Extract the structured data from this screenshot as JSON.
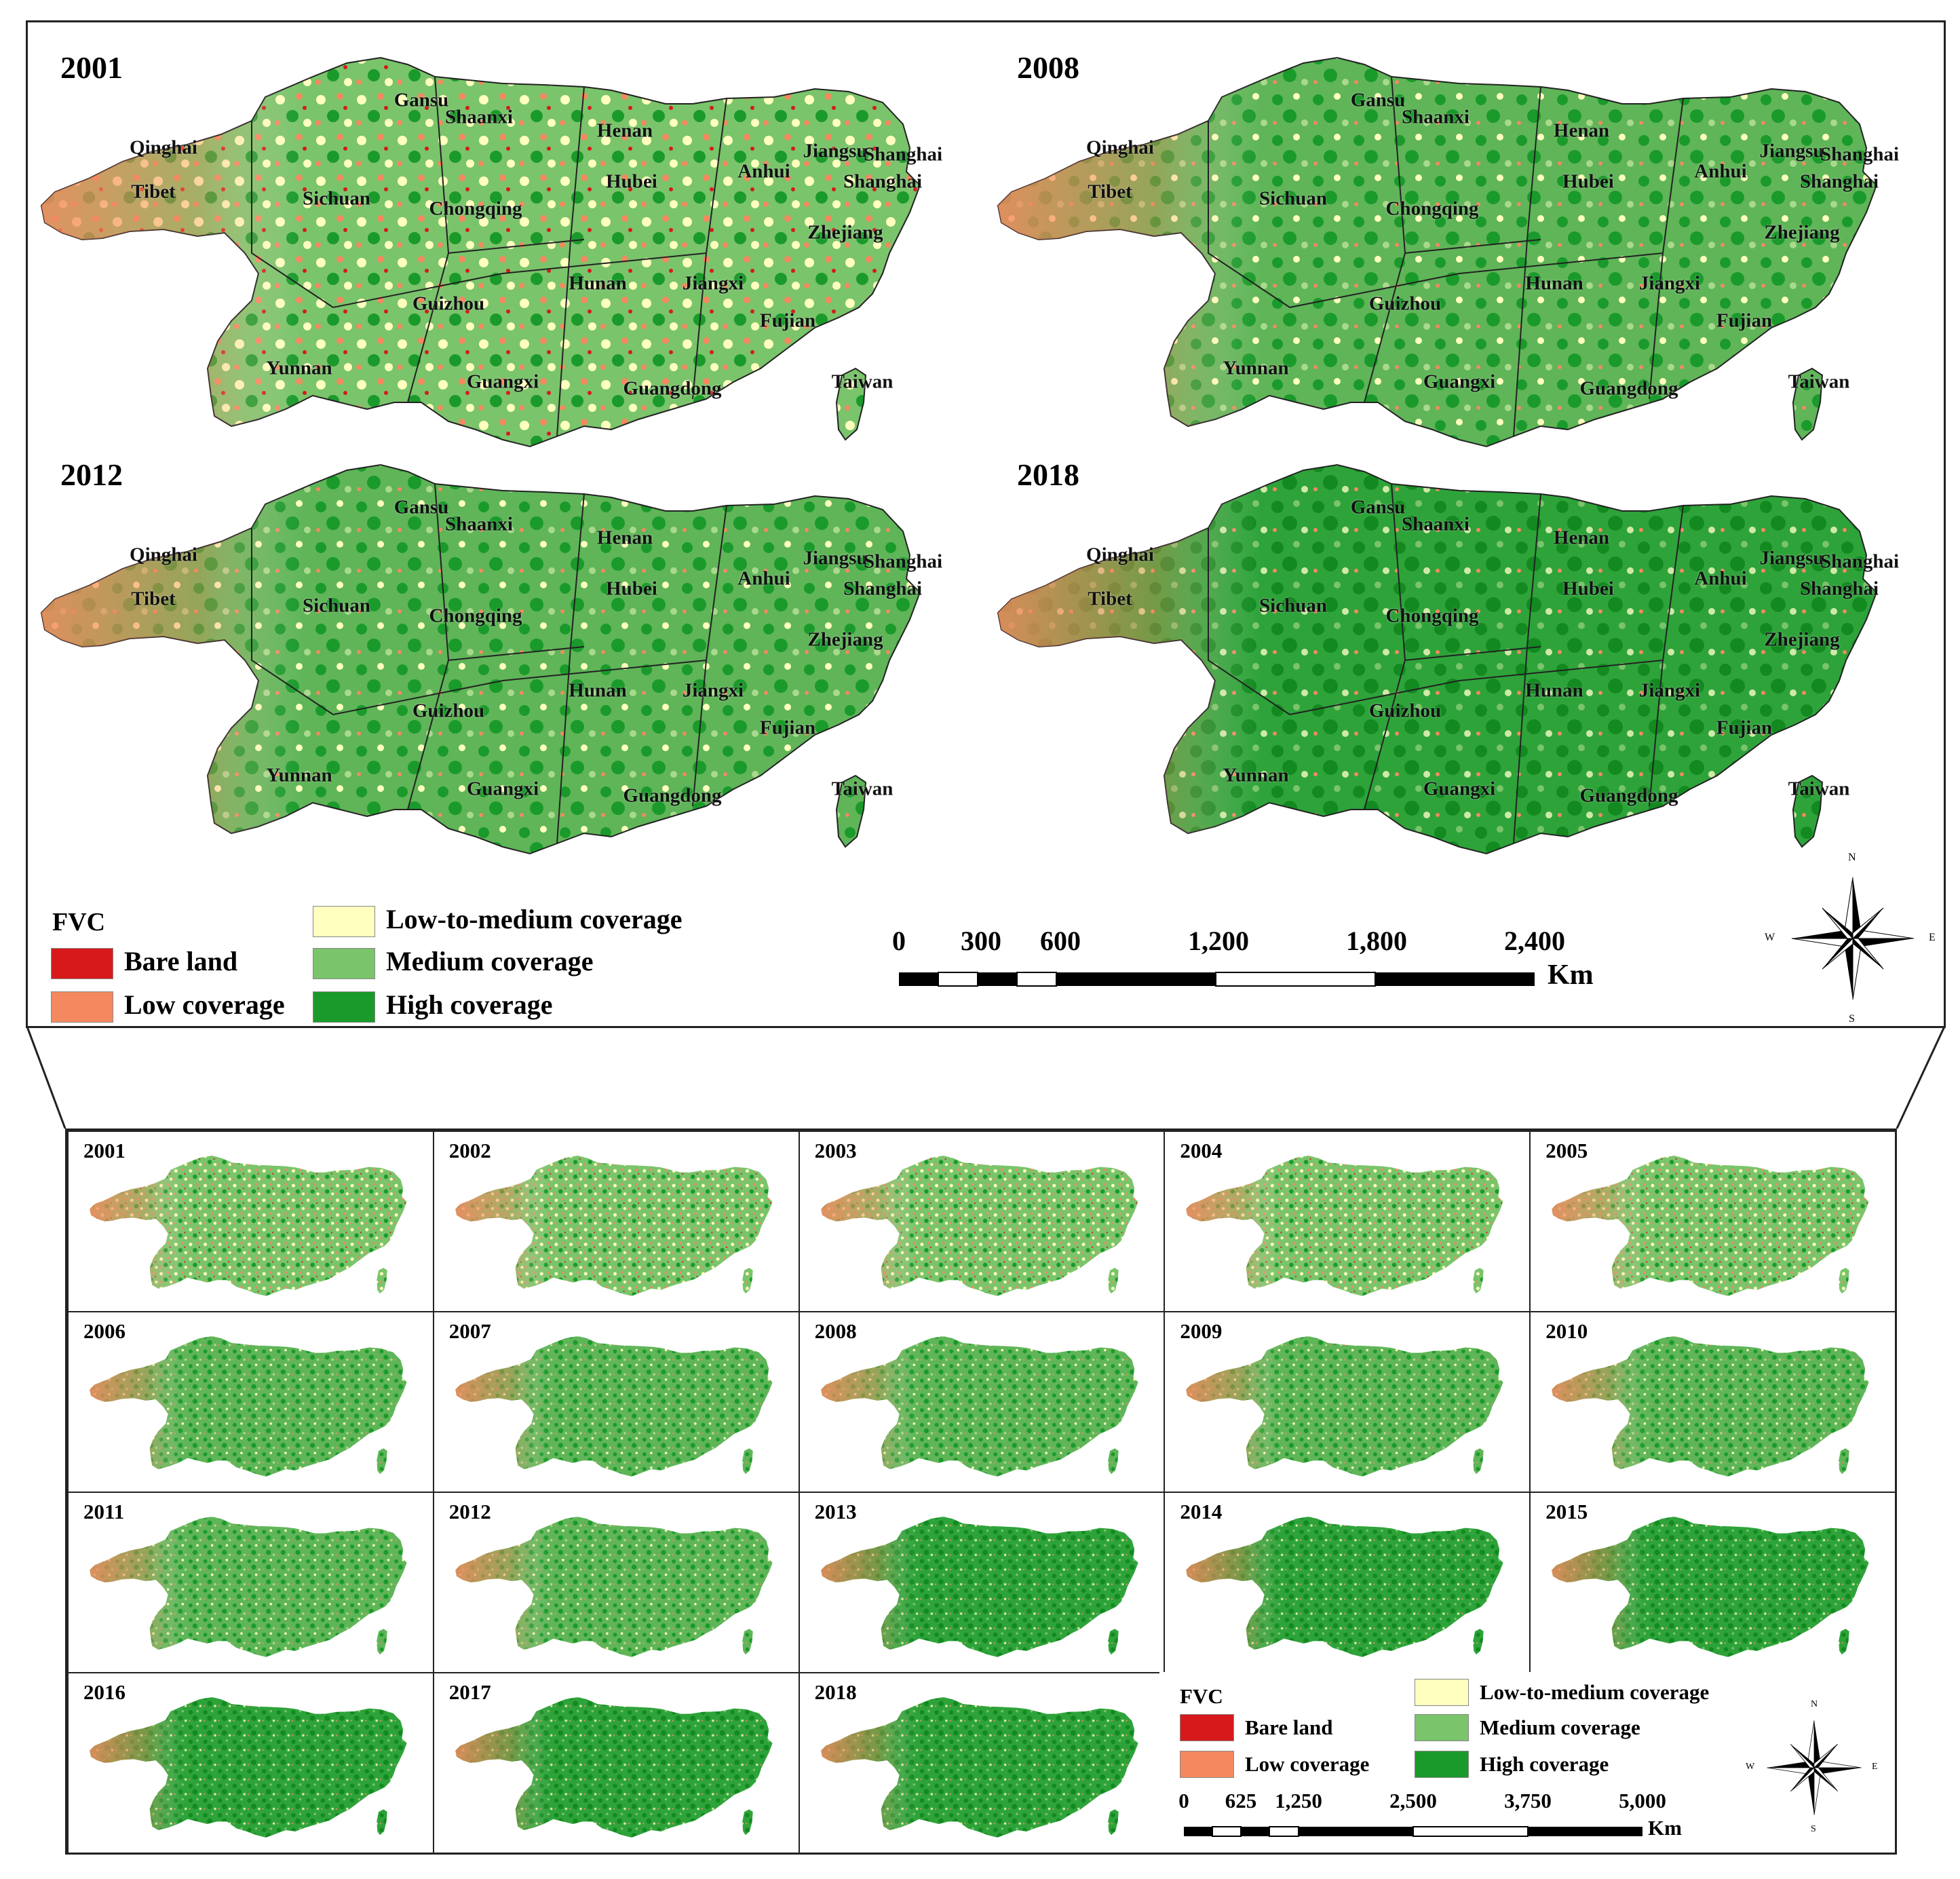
{
  "top": {
    "panels": [
      {
        "year": "2001",
        "tint": "low"
      },
      {
        "year": "2008",
        "tint": "mid"
      },
      {
        "year": "2012",
        "tint": "mid"
      },
      {
        "year": "2018",
        "tint": "high"
      }
    ],
    "provinces": [
      "Gansu",
      "Shaanxi",
      "Henan",
      "Qinghai",
      "Jiangsu",
      "Shanghai",
      "Tibet",
      "Sichuan",
      "Hubei",
      "Anhui",
      "Shanghai",
      "Chongqing",
      "Zhejiang",
      "Hunan",
      "Jiangxi",
      "Guizhou",
      "Fujian",
      "Yunnan",
      "Guangxi",
      "Guangdong",
      "Taiwan"
    ],
    "legend": {
      "title": "FVC",
      "items": [
        "Bare land",
        "Low coverage",
        "Low-to-medium coverage",
        "Medium coverage",
        "High coverage"
      ]
    },
    "scale": {
      "ticks": [
        "0",
        "300",
        "600",
        "1,200",
        "1,800",
        "2,400"
      ],
      "unit": "Km"
    },
    "compass": {
      "n": "N",
      "s": "S",
      "e": "E",
      "w": "W"
    }
  },
  "bottom": {
    "years": [
      "2001",
      "2002",
      "2003",
      "2004",
      "2005",
      "2006",
      "2007",
      "2008",
      "2009",
      "2010",
      "2011",
      "2012",
      "2013",
      "2014",
      "2015",
      "2016",
      "2017",
      "2018"
    ],
    "legend": {
      "title": "FVC",
      "items": [
        "Bare land",
        "Low coverage",
        "Low-to-medium coverage",
        "Medium coverage",
        "High coverage"
      ]
    },
    "scale": {
      "ticks": [
        "0",
        "625",
        "1,250",
        "2,500",
        "3,750",
        "5,000"
      ],
      "unit": "Km"
    },
    "compass": {
      "n": "N",
      "s": "S",
      "e": "E",
      "w": "W"
    }
  },
  "colors": {
    "bare": "#d7191c",
    "low": "#f4895f",
    "lowmed": "#ffffbf",
    "medium": "#7ac46b",
    "high": "#1a9a2a"
  }
}
